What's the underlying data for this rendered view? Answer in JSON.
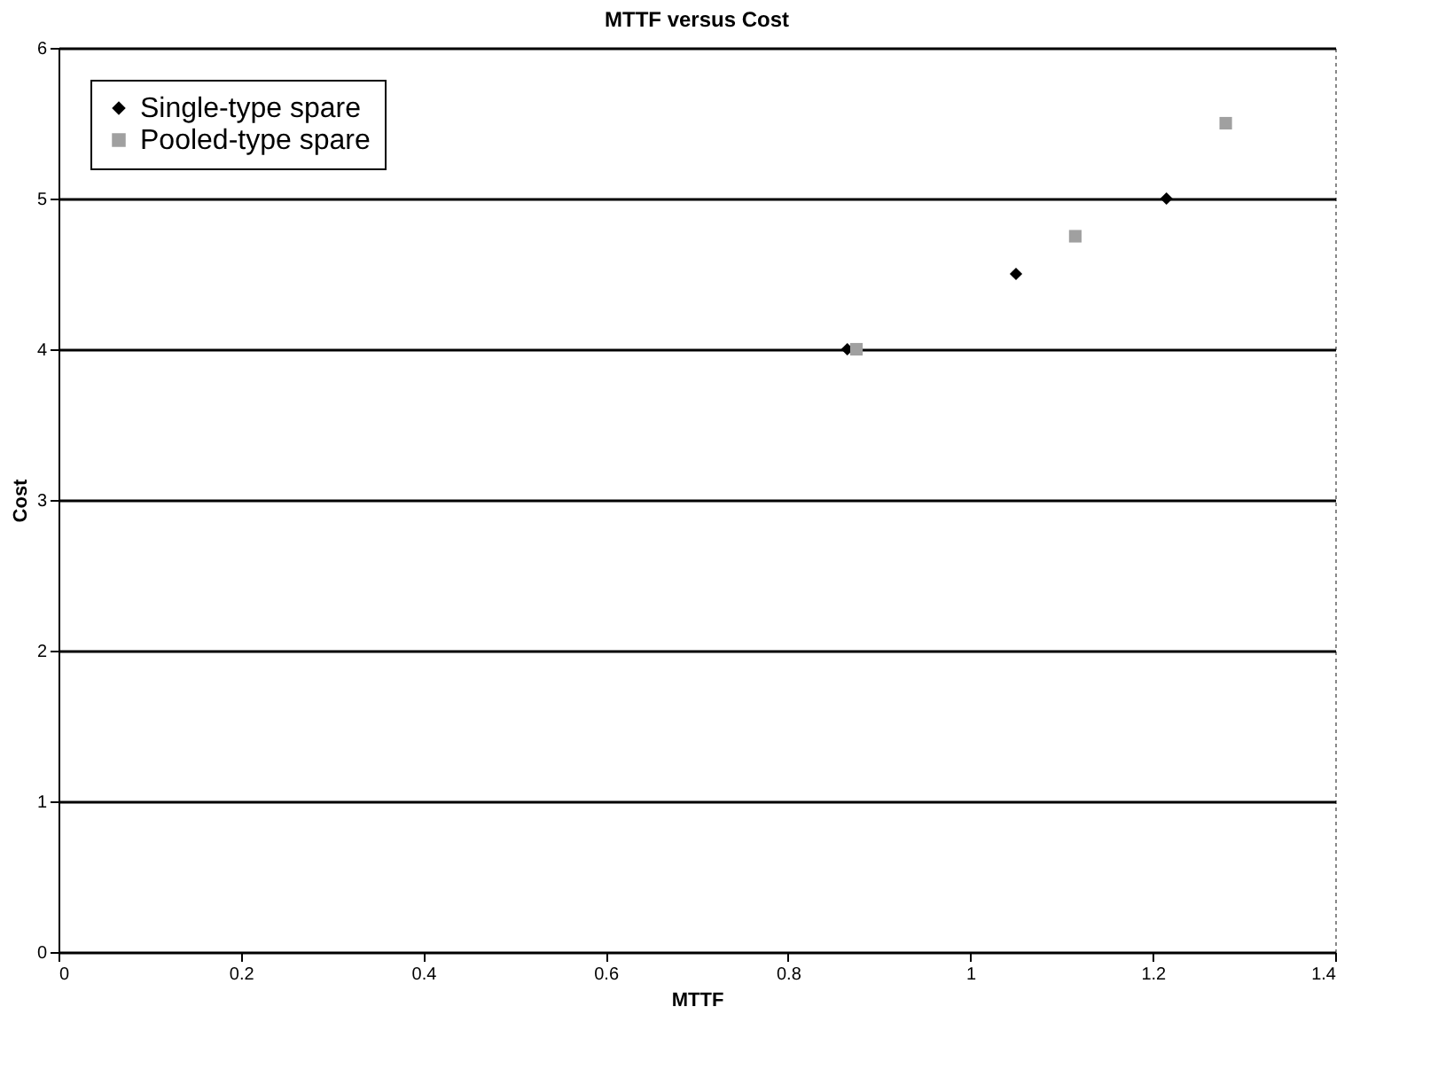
{
  "chart_data": {
    "type": "scatter",
    "title": "MTTF versus Cost",
    "xlabel": "MTTF",
    "ylabel": "Cost",
    "xlim": [
      0,
      1.4
    ],
    "xticks": [
      0,
      0.2,
      0.4,
      0.6,
      0.8,
      1,
      1.2,
      1.4
    ],
    "ylim": [
      0,
      6
    ],
    "yticks": [
      0,
      1,
      2,
      3,
      4,
      5,
      6
    ],
    "grid": "y",
    "legend": "top left",
    "series": [
      {
        "name": "Single-type spare",
        "color": "#000000",
        "marker": "diamond",
        "x": [
          0.865,
          1.05,
          1.215
        ],
        "values": [
          4.0,
          4.5,
          5.0
        ]
      },
      {
        "name": "Pooled-type spare",
        "color": "#a0a0a0",
        "marker": "square",
        "x": [
          0.875,
          1.115,
          1.28
        ],
        "values": [
          4.0,
          4.75,
          5.5
        ]
      }
    ]
  }
}
